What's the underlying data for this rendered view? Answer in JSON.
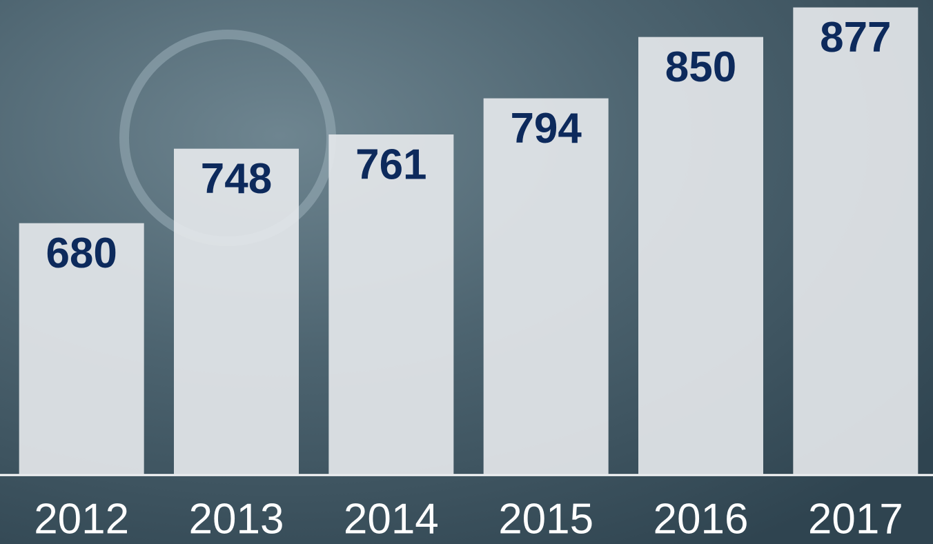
{
  "chart_data": {
    "type": "bar",
    "categories": [
      "2012",
      "2013",
      "2014",
      "2015",
      "2016",
      "2017"
    ],
    "values": [
      680,
      748,
      761,
      794,
      850,
      877
    ],
    "color": "#e4e7ea",
    "ylim": [
      450,
      880
    ]
  }
}
